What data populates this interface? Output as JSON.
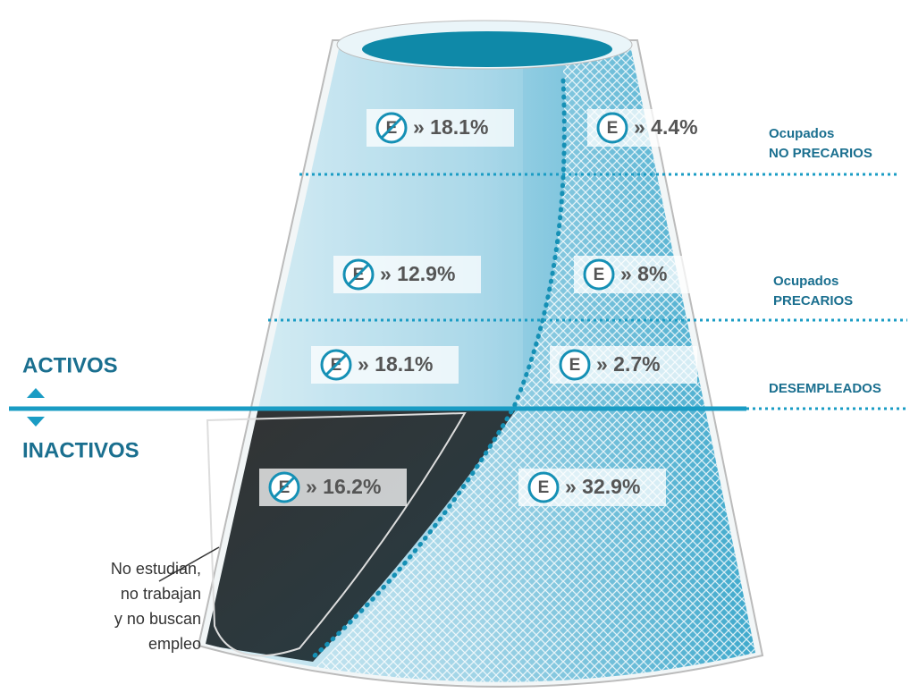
{
  "labels": {
    "activos": "ACTIVOS",
    "inactivos": "INACTIVOS"
  },
  "icon_letter": "E",
  "categories": [
    {
      "lines": [
        "Ocupados",
        "NO PRECARIOS"
      ]
    },
    {
      "lines": [
        "Ocupados",
        "PRECARIOS"
      ]
    },
    {
      "lines": [
        "DESEMPLEADOS"
      ]
    }
  ],
  "rows": [
    {
      "not_studying": "» 18.1%",
      "studying": "» 4.4%"
    },
    {
      "not_studying": "» 12.9%",
      "studying": "» 8%"
    },
    {
      "not_studying": "» 18.1%",
      "studying": "» 2.7%"
    },
    {
      "not_studying": "» 16.2%",
      "studying": "» 32.9%"
    }
  ],
  "note": {
    "lines": [
      "No estudian,",
      "no trabajan",
      "y no buscan",
      "empleo"
    ]
  }
}
